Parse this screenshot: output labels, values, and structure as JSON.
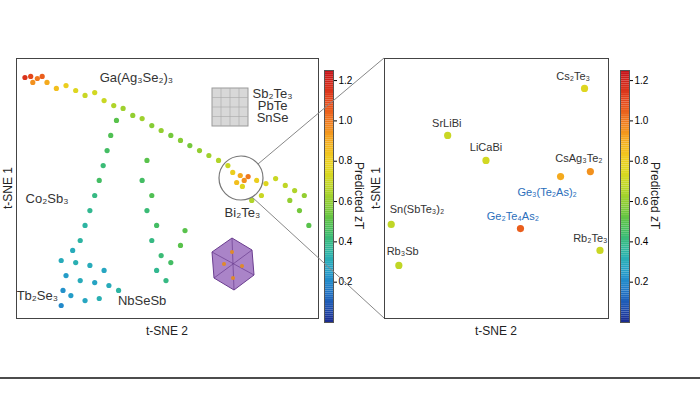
{
  "chart_data": [
    {
      "type": "scatter",
      "xlabel": "t-SNE 2",
      "ylabel": "t-SNE 1",
      "xlim": [
        0,
        100
      ],
      "ylim": [
        0,
        100
      ],
      "tick_labels": false,
      "x": [
        2.8,
        4.7,
        6.9,
        8.5,
        5.4,
        10.1,
        13.2,
        16.4,
        19.6,
        22.7,
        25.9,
        29.0,
        32.2,
        35.3,
        38.5,
        41.6,
        44.8,
        47.9,
        51.1,
        54.3,
        57.4,
        60.6,
        63.7,
        66.9,
        70.0,
        71.6,
        74.1,
        75.4,
        72.9,
        76.7,
        74.8,
        79.5,
        82.6,
        85.8,
        89.0,
        92.1,
        95.3,
        90.5,
        93.7,
        96.8,
        81.1,
        77.9,
        33.1,
        31.2,
        30.0,
        28.7,
        27.4,
        25.9,
        24.3,
        22.7,
        21.1,
        18.6,
        14.8,
        19.6,
        24.3,
        29.0,
        16.4,
        21.1,
        25.9,
        30.6,
        15.4,
        18.0,
        22.7,
        27.4,
        14.8,
        33.8,
        43.2,
        41.6,
        44.8,
        43.2,
        46.4,
        44.8,
        47.9,
        46.4,
        49.5,
        51.1,
        54.3,
        55.8
      ],
      "y": [
        92.7,
        93.1,
        92.3,
        93.1,
        90.8,
        90.8,
        88.5,
        89.6,
        87.7,
        85.8,
        86.9,
        83.8,
        81.9,
        80.8,
        78.1,
        76.9,
        74.2,
        72.3,
        70.4,
        68.5,
        66.5,
        64.6,
        62.7,
        60.8,
        58.8,
        56.2,
        55.0,
        53.1,
        52.3,
        54.6,
        50.8,
        53.1,
        51.9,
        53.8,
        51.2,
        49.2,
        47.3,
        45.4,
        41.5,
        35.8,
        47.3,
        45.4,
        76.2,
        70.4,
        64.6,
        58.8,
        53.1,
        47.3,
        41.5,
        35.8,
        30.0,
        26.2,
        22.3,
        21.5,
        20.4,
        18.5,
        16.5,
        14.6,
        13.8,
        12.7,
        10.8,
        8.8,
        6.9,
        7.7,
        5.0,
        10.8,
        60.8,
        53.1,
        47.3,
        41.5,
        35.8,
        30.0,
        24.2,
        18.5,
        14.6,
        21.5,
        28.1,
        33.8
      ],
      "values": [
        1.15,
        1.1,
        1.0,
        1.05,
        0.95,
        0.9,
        0.85,
        0.8,
        0.75,
        0.7,
        0.72,
        0.7,
        0.65,
        0.62,
        0.6,
        0.62,
        0.58,
        0.6,
        0.55,
        0.58,
        0.55,
        0.6,
        0.62,
        0.65,
        0.7,
        0.8,
        0.9,
        0.95,
        0.85,
        1.0,
        0.75,
        0.8,
        0.75,
        0.7,
        0.68,
        0.65,
        0.6,
        0.6,
        0.55,
        0.5,
        0.7,
        0.65,
        0.5,
        0.48,
        0.45,
        0.42,
        0.45,
        0.4,
        0.38,
        0.35,
        0.35,
        0.3,
        0.3,
        0.32,
        0.3,
        0.28,
        0.25,
        0.3,
        0.27,
        0.3,
        0.22,
        0.25,
        0.28,
        0.32,
        0.2,
        0.35,
        0.5,
        0.45,
        0.48,
        0.42,
        0.45,
        0.4,
        0.42,
        0.38,
        0.4,
        0.45,
        0.5,
        0.5
      ],
      "colorbar": {
        "label": "Predicted zT",
        "range": [
          0,
          1.25
        ],
        "ticks": [
          0.2,
          0.4,
          0.6,
          0.8,
          {
            "value": 1,
            "label": "1.0"
          },
          1.2
        ]
      },
      "annotations": [
        {
          "text": "Ga(Ag₃Se₂)₃",
          "x": 39.7,
          "y": 92.7,
          "color": "#333333"
        },
        {
          "text": "Sb₂Te₃",
          "x": 84.8,
          "y": 86.5,
          "color": "#333333"
        },
        {
          "text": "PbTe",
          "x": 84.8,
          "y": 81.9,
          "color": "#333333"
        },
        {
          "text": "SnSe",
          "x": 84.8,
          "y": 77.3,
          "color": "#333333"
        },
        {
          "text": "Co₂Sb₃",
          "x": 10.1,
          "y": 46.2,
          "color": "#333333"
        },
        {
          "text": "Bi₂Te₃",
          "x": 74.8,
          "y": 40.8,
          "color": "#333333"
        },
        {
          "text": "Tb₂Se₃",
          "x": 6.9,
          "y": 8.8,
          "color": "#333333"
        },
        {
          "text": "NbSeSb",
          "x": 41.6,
          "y": 6.9,
          "color": "#333333"
        }
      ]
    },
    {
      "type": "scatter",
      "xlabel": "t-SNE 2",
      "ylabel": "t-SNE 1",
      "xlim": [
        0,
        100
      ],
      "ylim": [
        0,
        100
      ],
      "tick_labels": false,
      "x": [
        89.3,
        28.2,
        45.3,
        91.9,
        78.6,
        60.7,
        3.0,
        96.2,
        6.4
      ],
      "y": [
        88.5,
        70.4,
        60.8,
        56.5,
        54.6,
        34.6,
        36.2,
        26.2,
        20.4
      ],
      "values": [
        0.75,
        0.7,
        0.72,
        0.95,
        0.9,
        1.05,
        0.68,
        0.7,
        0.68
      ],
      "colorbar": {
        "label": "Predicted zT",
        "range": [
          0,
          1.25
        ],
        "ticks": [
          0.2,
          0.4,
          0.6,
          0.8,
          {
            "value": 1,
            "label": "1.0"
          },
          1.2
        ]
      },
      "annotations": [
        {
          "text": "Cs₂Te₃",
          "x": 84.2,
          "y": 93.1,
          "color": "#333333"
        },
        {
          "text": "SrLiBi",
          "x": 27.8,
          "y": 75.0,
          "color": "#333333"
        },
        {
          "text": "LiCaBi",
          "x": 45.3,
          "y": 65.8,
          "color": "#333333"
        },
        {
          "text": "CsAg₃Te₂",
          "x": 86.8,
          "y": 61.5,
          "color": "#333333"
        },
        {
          "text": "Ge₃(Te₂As)₂",
          "x": 72.6,
          "y": 48.5,
          "color": "#2a6ebb"
        },
        {
          "text": "Ge₂Te₄As₂",
          "x": 57.3,
          "y": 39.2,
          "color": "#2a6ebb"
        },
        {
          "text": "Sn(SbTe₃)₂",
          "x": 14.5,
          "y": 41.9,
          "color": "#333333"
        },
        {
          "text": "Rb₂Te₃",
          "x": 91.9,
          "y": 30.8,
          "color": "#333333"
        },
        {
          "text": "Rb₃Sb",
          "x": 8.1,
          "y": 25.8,
          "color": "#333333"
        }
      ]
    }
  ]
}
